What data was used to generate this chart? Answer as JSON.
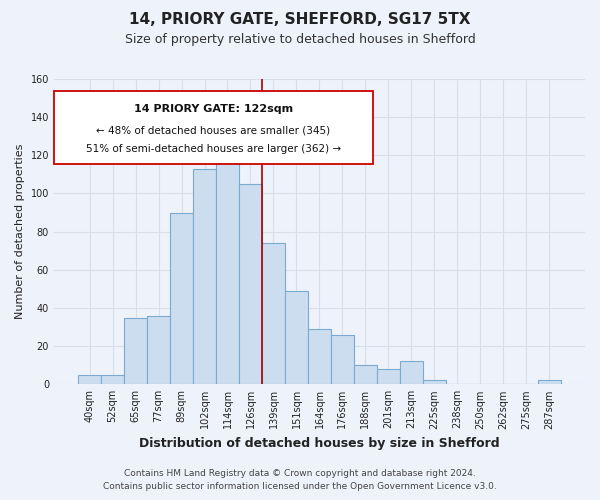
{
  "title": "14, PRIORY GATE, SHEFFORD, SG17 5TX",
  "subtitle": "Size of property relative to detached houses in Shefford",
  "xlabel": "Distribution of detached houses by size in Shefford",
  "ylabel": "Number of detached properties",
  "bar_labels": [
    "40sqm",
    "52sqm",
    "65sqm",
    "77sqm",
    "89sqm",
    "102sqm",
    "114sqm",
    "126sqm",
    "139sqm",
    "151sqm",
    "164sqm",
    "176sqm",
    "188sqm",
    "201sqm",
    "213sqm",
    "225sqm",
    "238sqm",
    "250sqm",
    "262sqm",
    "275sqm",
    "287sqm"
  ],
  "bar_values": [
    5,
    5,
    35,
    36,
    90,
    113,
    120,
    105,
    74,
    49,
    29,
    26,
    10,
    8,
    12,
    2,
    0,
    0,
    0,
    0,
    2
  ],
  "bar_color": "#cdddf0",
  "bar_edge_color": "#7aaad0",
  "vline_x": 7.5,
  "vline_color": "#aa0000",
  "ylim": [
    0,
    160
  ],
  "yticks": [
    0,
    20,
    40,
    60,
    80,
    100,
    120,
    140,
    160
  ],
  "annotation_title": "14 PRIORY GATE: 122sqm",
  "annotation_line1": "← 48% of detached houses are smaller (345)",
  "annotation_line2": "51% of semi-detached houses are larger (362) →",
  "annotation_box_color": "#ffffff",
  "annotation_box_edgecolor": "#cc0000",
  "footer1": "Contains HM Land Registry data © Crown copyright and database right 2024.",
  "footer2": "Contains public sector information licensed under the Open Government Licence v3.0.",
  "background_color": "#eef2fa",
  "grid_color": "#d8dfe8",
  "title_fontsize": 11,
  "subtitle_fontsize": 9,
  "xlabel_fontsize": 9,
  "ylabel_fontsize": 8,
  "tick_fontsize": 7,
  "footer_fontsize": 6.5
}
